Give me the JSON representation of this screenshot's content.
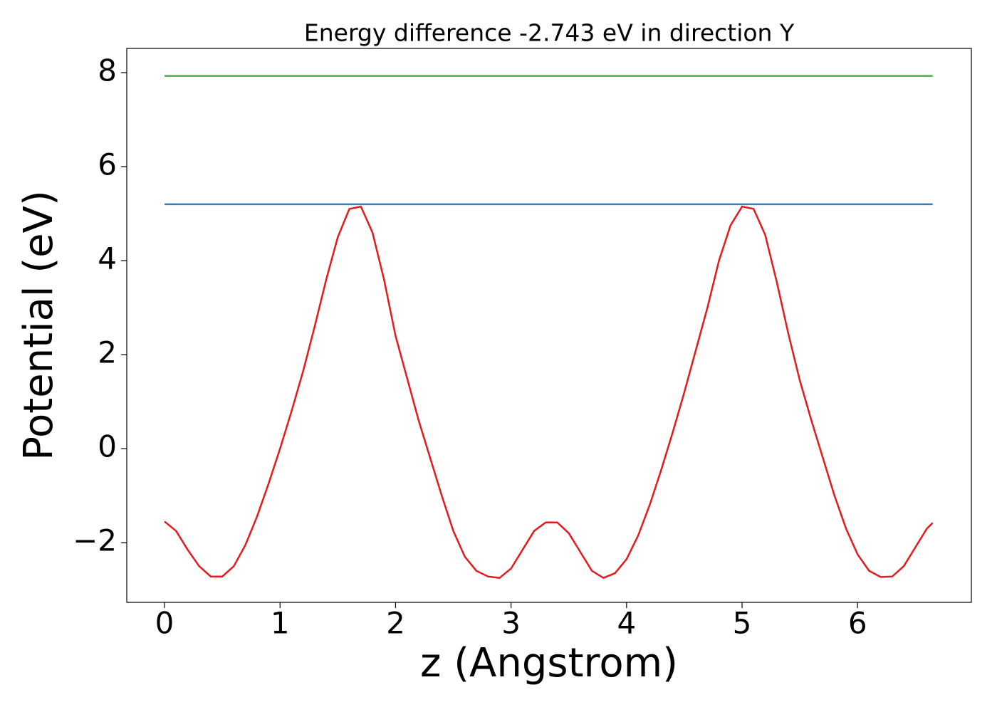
{
  "chart_data": {
    "type": "line",
    "title": "Energy difference -2.743 eV in direction Y",
    "xlabel": "z (Angstrom)",
    "ylabel": "Potential (eV)",
    "xlim": [
      -0.327,
      6.985
    ],
    "ylim": [
      -3.27,
      8.515
    ],
    "xticks": [
      0,
      1,
      2,
      3,
      4,
      5,
      6
    ],
    "yticks": [
      {
        "value": -2,
        "label": "−2"
      },
      0,
      2,
      4,
      6,
      8
    ],
    "series": [
      {
        "color": "#e41a1c",
        "x": [
          0,
          0.1,
          0.2,
          0.3,
          0.4,
          0.5,
          0.6,
          0.7,
          0.8,
          0.9,
          1.0,
          1.1,
          1.2,
          1.3,
          1.4,
          1.5,
          1.6,
          1.7,
          1.8,
          1.9,
          2.0,
          2.1,
          2.2,
          2.3,
          2.4,
          2.5,
          2.6,
          2.7,
          2.8,
          2.9,
          3.0,
          3.1,
          3.2,
          3.3,
          3.4,
          3.5,
          3.6,
          3.7,
          3.8,
          3.9,
          4.0,
          4.1,
          4.2,
          4.3,
          4.4,
          4.5,
          4.6,
          4.7,
          4.8,
          4.9,
          5.0,
          5.1,
          5.2,
          5.3,
          5.4,
          5.5,
          5.6,
          5.7,
          5.8,
          5.9,
          6.0,
          6.1,
          6.2,
          6.3,
          6.4,
          6.5,
          6.6,
          6.65
        ],
        "values": [
          -1.55,
          -1.75,
          -2.15,
          -2.5,
          -2.72,
          -2.72,
          -2.5,
          -2.05,
          -1.45,
          -0.75,
          0.0,
          0.8,
          1.65,
          2.6,
          3.6,
          4.5,
          5.1,
          5.15,
          4.6,
          3.6,
          2.4,
          1.5,
          0.6,
          -0.2,
          -1.0,
          -1.75,
          -2.3,
          -2.6,
          -2.72,
          -2.75,
          -2.55,
          -2.15,
          -1.75,
          -1.57,
          -1.57,
          -1.8,
          -2.2,
          -2.6,
          -2.75,
          -2.65,
          -2.35,
          -1.85,
          -1.2,
          -0.45,
          0.35,
          1.2,
          2.1,
          3.0,
          4.0,
          4.75,
          5.15,
          5.1,
          4.55,
          3.55,
          2.45,
          1.45,
          0.6,
          -0.2,
          -1.0,
          -1.7,
          -2.25,
          -2.6,
          -2.73,
          -2.72,
          -2.5,
          -2.1,
          -1.7,
          -1.58
        ]
      },
      {
        "color": "#377eb8",
        "x": [
          0,
          6.65
        ],
        "values": [
          5.2,
          5.2
        ]
      },
      {
        "color": "#4daf4a",
        "x": [
          0,
          6.65
        ],
        "values": [
          7.93,
          7.93
        ]
      }
    ]
  }
}
